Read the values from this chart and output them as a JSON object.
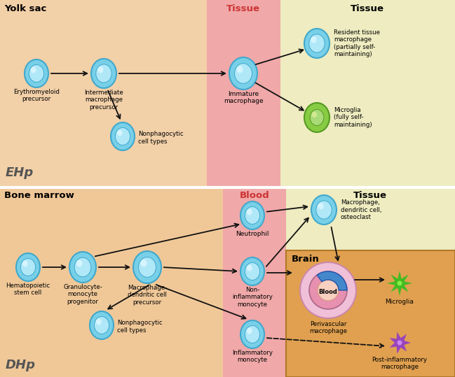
{
  "bg_yolk": "#f2d0a8",
  "bg_tissue_pink": "#f0a8a8",
  "bg_right_yellow": "#eeecc0",
  "bg_bone": "#f0c898",
  "bg_brain_box": "#e0a050",
  "divider_color": "#dddddd",
  "cell_outer": "#78d0e8",
  "cell_inner": "#b0e8f8",
  "cell_edge": "#40a8cc",
  "cell_highlight": "#e0f8ff",
  "green_outer": "#88cc44",
  "green_inner": "#aada77",
  "green_edge": "#559922",
  "arrow_color": "#222222",
  "label_yolk": "Yolk sac",
  "label_tissue_top": "Tissue",
  "label_tissue_right_top": "Tissue",
  "label_bone": "Bone marrow",
  "label_blood": "Blood",
  "label_tissue_right_bot": "Tissue",
  "label_brain": "Brain",
  "label_ehp": "EHp",
  "label_dhp": "DHp",
  "label_ep": "Erythromyeloid\nprecursor",
  "label_imp": "Intermediate\nmacrophage\nprecursor",
  "label_npc1": "Nonphagocytic\ncell types",
  "label_imm": "Immature\nmacrophage",
  "label_rtm": "Resident tissue\nmacrophage\n(partially self-\nmaintaining)",
  "label_mic1": "Microglia\n(fully self-\nmaintaining)",
  "label_hsc": "Hematopoietic\nstem cell",
  "label_gmp": "Granulocyte-\nmonocyte\nprogenitor",
  "label_mdcp": "Macrophage-\ndendritic cell\nprecursor",
  "label_npc2": "Nonphagocytic\ncell types",
  "label_neu": "Neutrophil",
  "label_nim": "Non-\ninflammatory\nmonocyte",
  "label_infm": "Inflammatory\nmonocyte",
  "label_mdo": "Macrophage,\ndendritic cell,\nosteoclast",
  "label_periv": "Perivascular\nmacrophage",
  "label_mic2": "Microglia",
  "label_postinfl": "Post-inflammatory\nmacrophage",
  "label_blood_vessel": "Blood"
}
